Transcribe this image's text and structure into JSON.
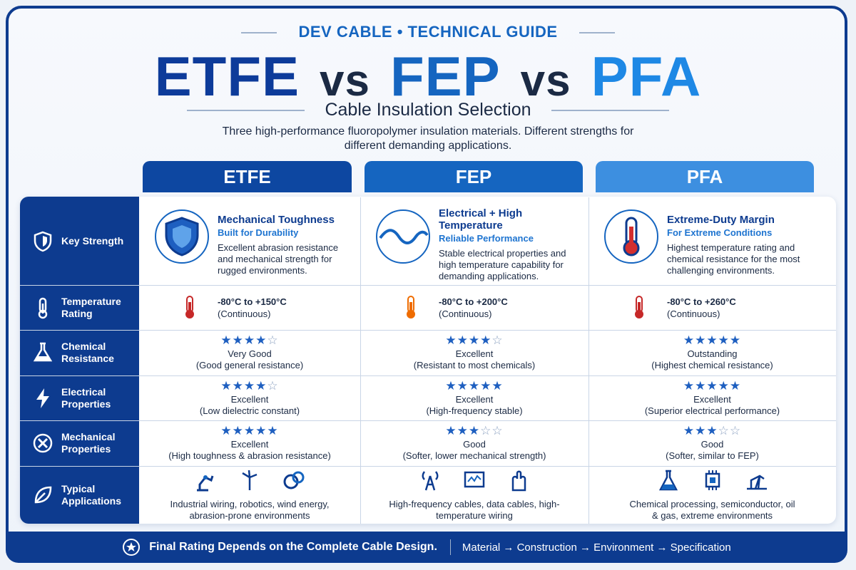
{
  "header": {
    "brand": "DEV CABLE • TECHNICAL GUIDE",
    "title": [
      "ETFE",
      "vs",
      "FEP",
      "vs",
      "PFA"
    ],
    "subtitle": "Cable Insulation Selection",
    "description": "Three high-performance fluoropolymer insulation materials. Different strengths for different demanding applications."
  },
  "rating_max": 5,
  "row_labels": [
    "Key Strength",
    "Temperature Rating",
    "Chemical Resistance",
    "Electrical Properties",
    "Mechanical Properties",
    "Typical Applications"
  ],
  "materials": [
    {
      "name": "ETFE",
      "key_strength": {
        "title": "Mechanical Toughness",
        "subtitle": "Built for Durability",
        "description": "Excellent abrasion resistance and mechanical strength for rugged environments."
      },
      "temperature": {
        "range": "-80°C to +150°C",
        "note": "(Continuous)"
      },
      "chemical": {
        "rating": 4,
        "label": "Very Good",
        "note": "(Good general resistance)"
      },
      "electrical": {
        "rating": 4,
        "label": "Excellent",
        "note": "(Low dielectric constant)"
      },
      "mechanical": {
        "rating": 5,
        "label": "Excellent",
        "note": "(High toughness & abrasion resistance)"
      },
      "applications": "Industrial wiring, robotics, wind energy, abrasion-prone environments"
    },
    {
      "name": "FEP",
      "key_strength": {
        "title": "Electrical + High Temperature",
        "subtitle": "Reliable Performance",
        "description": "Stable electrical properties and high temperature capability for demanding applications."
      },
      "temperature": {
        "range": "-80°C to +200°C",
        "note": "(Continuous)"
      },
      "chemical": {
        "rating": 4,
        "label": "Excellent",
        "note": "(Resistant to most chemicals)"
      },
      "electrical": {
        "rating": 5,
        "label": "Excellent",
        "note": "(High-frequency stable)"
      },
      "mechanical": {
        "rating": 3,
        "label": "Good",
        "note": "(Softer, lower mechanical strength)"
      },
      "applications": "High-frequency cables, data cables, high-temperature wiring"
    },
    {
      "name": "PFA",
      "key_strength": {
        "title": "Extreme-Duty Margin",
        "subtitle": "For Extreme Conditions",
        "description": "Highest temperature rating and chemical resistance for the most challenging environments."
      },
      "temperature": {
        "range": "-80°C to +260°C",
        "note": "(Continuous)"
      },
      "chemical": {
        "rating": 5,
        "label": "Outstanding",
        "note": "(Highest chemical resistance)"
      },
      "electrical": {
        "rating": 5,
        "label": "Excellent",
        "note": "(Superior electrical performance)"
      },
      "mechanical": {
        "rating": 3,
        "label": "Good",
        "note": "(Softer, similar to FEP)"
      },
      "applications": "Chemical processing, semiconductor, oil & gas, extreme environments"
    }
  ],
  "footer": {
    "note": "Final Rating Depends on the Complete Cable Design.",
    "flow": "Material → Construction → Environment → Specification"
  }
}
